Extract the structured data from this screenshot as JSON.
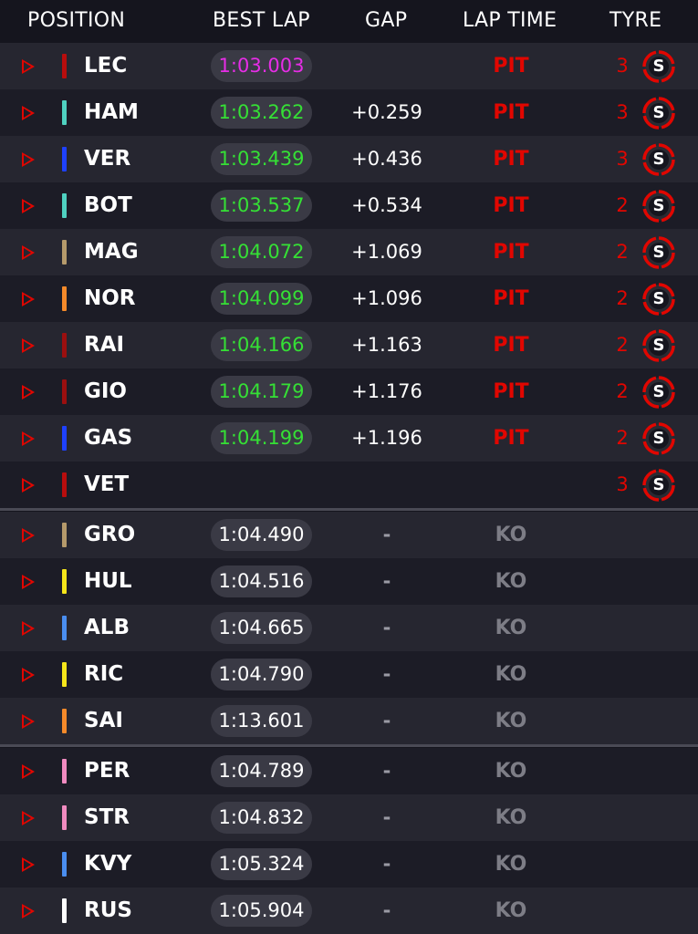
{
  "header": {
    "position": "POSITION",
    "best_lap": "BEST LAP",
    "gap": "GAP",
    "lap_time": "LAP TIME",
    "tyre": "TYRE"
  },
  "colors": {
    "pit": "#e10600",
    "ko": "#7d7d86",
    "purple_lap": "#e62de6",
    "green_lap": "#35e035"
  },
  "drivers": [
    {
      "code": "LEC",
      "team_color": "#b80d0d",
      "best_lap": "1:03.003",
      "best_style": "purple",
      "gap": "",
      "lap_time": "PIT",
      "laps": "3",
      "tyre": "S"
    },
    {
      "code": "HAM",
      "team_color": "#4fd1c0",
      "best_lap": "1:03.262",
      "best_style": "green",
      "gap": "+0.259",
      "lap_time": "PIT",
      "laps": "3",
      "tyre": "S"
    },
    {
      "code": "VER",
      "team_color": "#1e41ff",
      "best_lap": "1:03.439",
      "best_style": "green",
      "gap": "+0.436",
      "lap_time": "PIT",
      "laps": "3",
      "tyre": "S"
    },
    {
      "code": "BOT",
      "team_color": "#4fd1c0",
      "best_lap": "1:03.537",
      "best_style": "green",
      "gap": "+0.534",
      "lap_time": "PIT",
      "laps": "2",
      "tyre": "S"
    },
    {
      "code": "MAG",
      "team_color": "#b59a6b",
      "best_lap": "1:04.072",
      "best_style": "green",
      "gap": "+1.069",
      "lap_time": "PIT",
      "laps": "2",
      "tyre": "S"
    },
    {
      "code": "NOR",
      "team_color": "#f58a2a",
      "best_lap": "1:04.099",
      "best_style": "green",
      "gap": "+1.096",
      "lap_time": "PIT",
      "laps": "2",
      "tyre": "S"
    },
    {
      "code": "RAI",
      "team_color": "#9b0f0f",
      "best_lap": "1:04.166",
      "best_style": "green",
      "gap": "+1.163",
      "lap_time": "PIT",
      "laps": "2",
      "tyre": "S"
    },
    {
      "code": "GIO",
      "team_color": "#9b0f0f",
      "best_lap": "1:04.179",
      "best_style": "green",
      "gap": "+1.176",
      "lap_time": "PIT",
      "laps": "2",
      "tyre": "S"
    },
    {
      "code": "GAS",
      "team_color": "#1e41ff",
      "best_lap": "1:04.199",
      "best_style": "green",
      "gap": "+1.196",
      "lap_time": "PIT",
      "laps": "2",
      "tyre": "S"
    },
    {
      "code": "VET",
      "team_color": "#b80d0d",
      "best_lap": "",
      "best_style": "none",
      "gap": "",
      "lap_time": "",
      "laps": "3",
      "tyre": "S"
    },
    {
      "code": "GRO",
      "team_color": "#b59a6b",
      "best_lap": "1:04.490",
      "best_style": "white",
      "gap": "-",
      "lap_time": "KO",
      "laps": "",
      "tyre": ""
    },
    {
      "code": "HUL",
      "team_color": "#f5e51a",
      "best_lap": "1:04.516",
      "best_style": "white",
      "gap": "-",
      "lap_time": "KO",
      "laps": "",
      "tyre": ""
    },
    {
      "code": "ALB",
      "team_color": "#4a8ef0",
      "best_lap": "1:04.665",
      "best_style": "white",
      "gap": "-",
      "lap_time": "KO",
      "laps": "",
      "tyre": ""
    },
    {
      "code": "RIC",
      "team_color": "#f5e51a",
      "best_lap": "1:04.790",
      "best_style": "white",
      "gap": "-",
      "lap_time": "KO",
      "laps": "",
      "tyre": ""
    },
    {
      "code": "SAI",
      "team_color": "#f58a2a",
      "best_lap": "1:13.601",
      "best_style": "white",
      "gap": "-",
      "lap_time": "KO",
      "laps": "",
      "tyre": ""
    },
    {
      "code": "PER",
      "team_color": "#f08bc0",
      "best_lap": "1:04.789",
      "best_style": "white",
      "gap": "-",
      "lap_time": "KO",
      "laps": "",
      "tyre": ""
    },
    {
      "code": "STR",
      "team_color": "#f08bc0",
      "best_lap": "1:04.832",
      "best_style": "white",
      "gap": "-",
      "lap_time": "KO",
      "laps": "",
      "tyre": ""
    },
    {
      "code": "KVY",
      "team_color": "#4a8ef0",
      "best_lap": "1:05.324",
      "best_style": "white",
      "gap": "-",
      "lap_time": "KO",
      "laps": "",
      "tyre": ""
    },
    {
      "code": "RUS",
      "team_color": "#ffffff",
      "best_lap": "1:05.904",
      "best_style": "white",
      "gap": "-",
      "lap_time": "KO",
      "laps": "",
      "tyre": ""
    }
  ]
}
